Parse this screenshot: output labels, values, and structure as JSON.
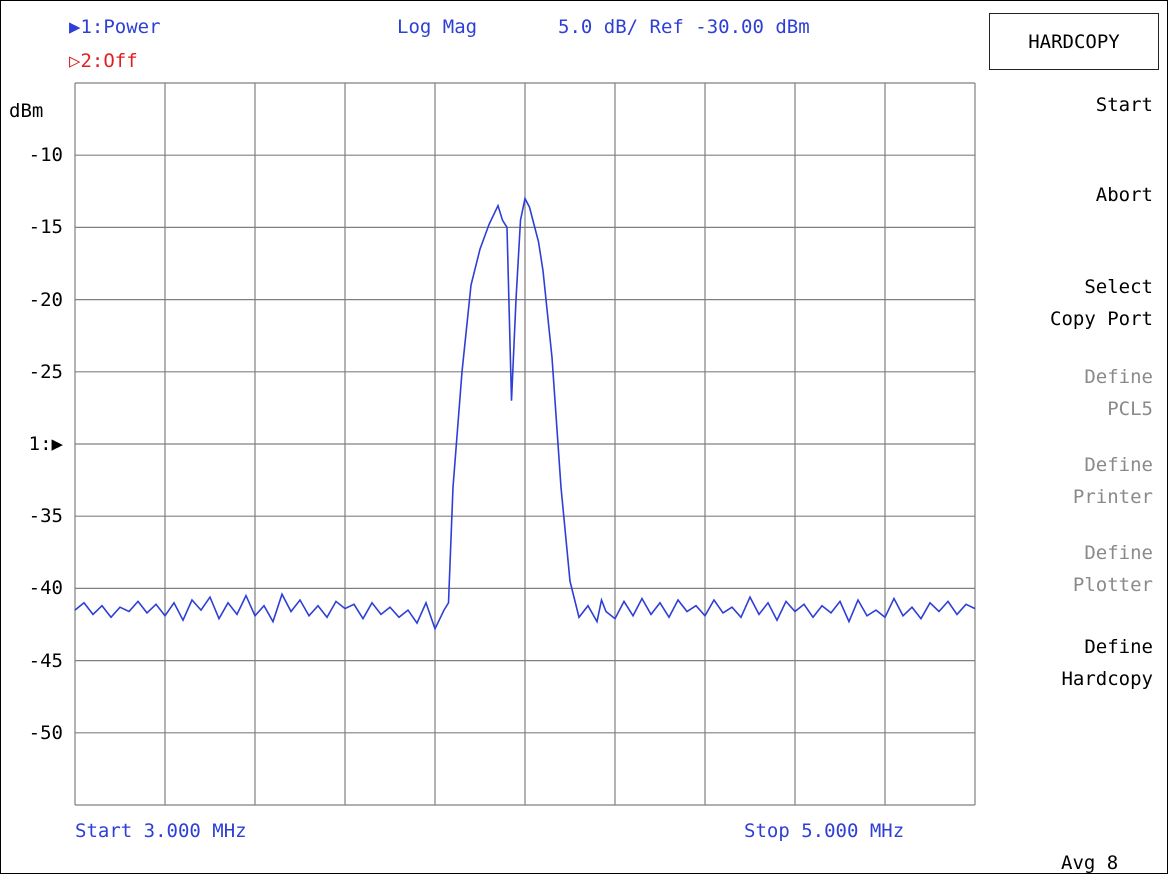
{
  "header": {
    "trace1": "▶1:Power",
    "trace2": "▷2:Off",
    "format": "Log Mag",
    "scale": "5.0 dB/ Ref -30.00 dBm"
  },
  "axis": {
    "unit": "dBm",
    "y_labels": [
      "-10",
      "-15",
      "-20",
      "-25",
      "1:▶",
      "-35",
      "-40",
      "-45",
      "-50"
    ],
    "start": "Start 3.000 MHz",
    "stop": "Stop 5.000 MHz"
  },
  "softkeys": {
    "title": "HARDCOPY",
    "items": [
      {
        "label": "Start",
        "enabled": true
      },
      {
        "label": "Abort",
        "enabled": true
      },
      {
        "label": "Select\nCopy Port",
        "enabled": true
      },
      {
        "label": "Define\nPCL5",
        "enabled": false
      },
      {
        "label": "Define\nPrinter",
        "enabled": false
      },
      {
        "label": "Define\nPlotter",
        "enabled": false
      },
      {
        "label": "Define\nHardcopy",
        "enabled": true
      }
    ],
    "status": "Avg 8"
  },
  "colors": {
    "trace": "#2d3fd6",
    "grid": "#808080",
    "text_blue": "#2d3fd6",
    "text_red": "#e02020",
    "disabled": "#8a8a8a"
  },
  "chart_data": {
    "type": "line",
    "x_range": [
      3.0,
      5.0
    ],
    "x_unit": "MHz",
    "ylim": [
      -55,
      -5
    ],
    "ref_level": -30,
    "scale_per_div": 5,
    "grid": true,
    "series": [
      {
        "x": [
          3.0,
          3.02,
          3.04,
          3.06,
          3.08,
          3.1,
          3.12,
          3.14,
          3.16,
          3.18,
          3.2,
          3.22,
          3.24,
          3.26,
          3.28,
          3.3,
          3.32,
          3.34,
          3.36,
          3.38,
          3.4,
          3.42,
          3.44,
          3.46,
          3.48,
          3.5,
          3.52,
          3.54,
          3.56,
          3.58,
          3.6,
          3.62,
          3.64,
          3.66,
          3.68,
          3.7,
          3.72,
          3.74,
          3.76,
          3.78,
          3.8,
          3.82,
          3.83,
          3.84,
          3.86,
          3.88,
          3.9,
          3.92,
          3.94,
          3.95,
          3.96,
          3.97,
          3.98,
          3.99,
          4.0,
          4.01,
          4.02,
          4.03,
          4.04,
          4.06,
          4.08,
          4.1,
          4.12,
          4.14,
          4.16,
          4.17,
          4.18,
          4.2,
          4.22,
          4.24,
          4.26,
          4.28,
          4.3,
          4.32,
          4.34,
          4.36,
          4.38,
          4.4,
          4.42,
          4.44,
          4.46,
          4.48,
          4.5,
          4.52,
          4.54,
          4.56,
          4.58,
          4.6,
          4.62,
          4.64,
          4.66,
          4.68,
          4.7,
          4.72,
          4.74,
          4.76,
          4.78,
          4.8,
          4.82,
          4.84,
          4.86,
          4.88,
          4.9,
          4.92,
          4.94,
          4.96,
          4.98,
          5.0
        ],
        "y": [
          -41.5,
          -41.0,
          -41.8,
          -41.2,
          -42.0,
          -41.3,
          -41.6,
          -40.9,
          -41.7,
          -41.1,
          -41.9,
          -41.0,
          -42.2,
          -40.8,
          -41.5,
          -40.6,
          -42.1,
          -41.0,
          -41.8,
          -40.5,
          -41.9,
          -41.2,
          -42.3,
          -40.4,
          -41.6,
          -40.8,
          -41.9,
          -41.2,
          -42.0,
          -40.9,
          -41.4,
          -41.1,
          -42.1,
          -41.0,
          -41.8,
          -41.3,
          -42.0,
          -41.5,
          -42.4,
          -41.0,
          -42.8,
          -41.5,
          -41.0,
          -33.0,
          -25.0,
          -19.0,
          -16.5,
          -14.8,
          -13.5,
          -14.5,
          -15.0,
          -27.0,
          -20.0,
          -14.5,
          -13.0,
          -13.6,
          -14.8,
          -16.0,
          -18.0,
          -24.0,
          -33.0,
          -39.5,
          -42.0,
          -41.2,
          -42.3,
          -40.8,
          -41.6,
          -42.1,
          -40.9,
          -41.9,
          -40.7,
          -41.8,
          -41.0,
          -42.0,
          -40.8,
          -41.6,
          -41.2,
          -41.9,
          -40.8,
          -41.7,
          -41.3,
          -42.0,
          -40.6,
          -41.8,
          -41.0,
          -42.2,
          -40.9,
          -41.6,
          -41.1,
          -42.0,
          -41.2,
          -41.7,
          -40.9,
          -42.3,
          -40.8,
          -41.9,
          -41.5,
          -42.0,
          -40.7,
          -41.9,
          -41.3,
          -42.1,
          -41.0,
          -41.6,
          -40.9,
          -41.8,
          -41.1,
          -41.4
        ]
      }
    ]
  }
}
